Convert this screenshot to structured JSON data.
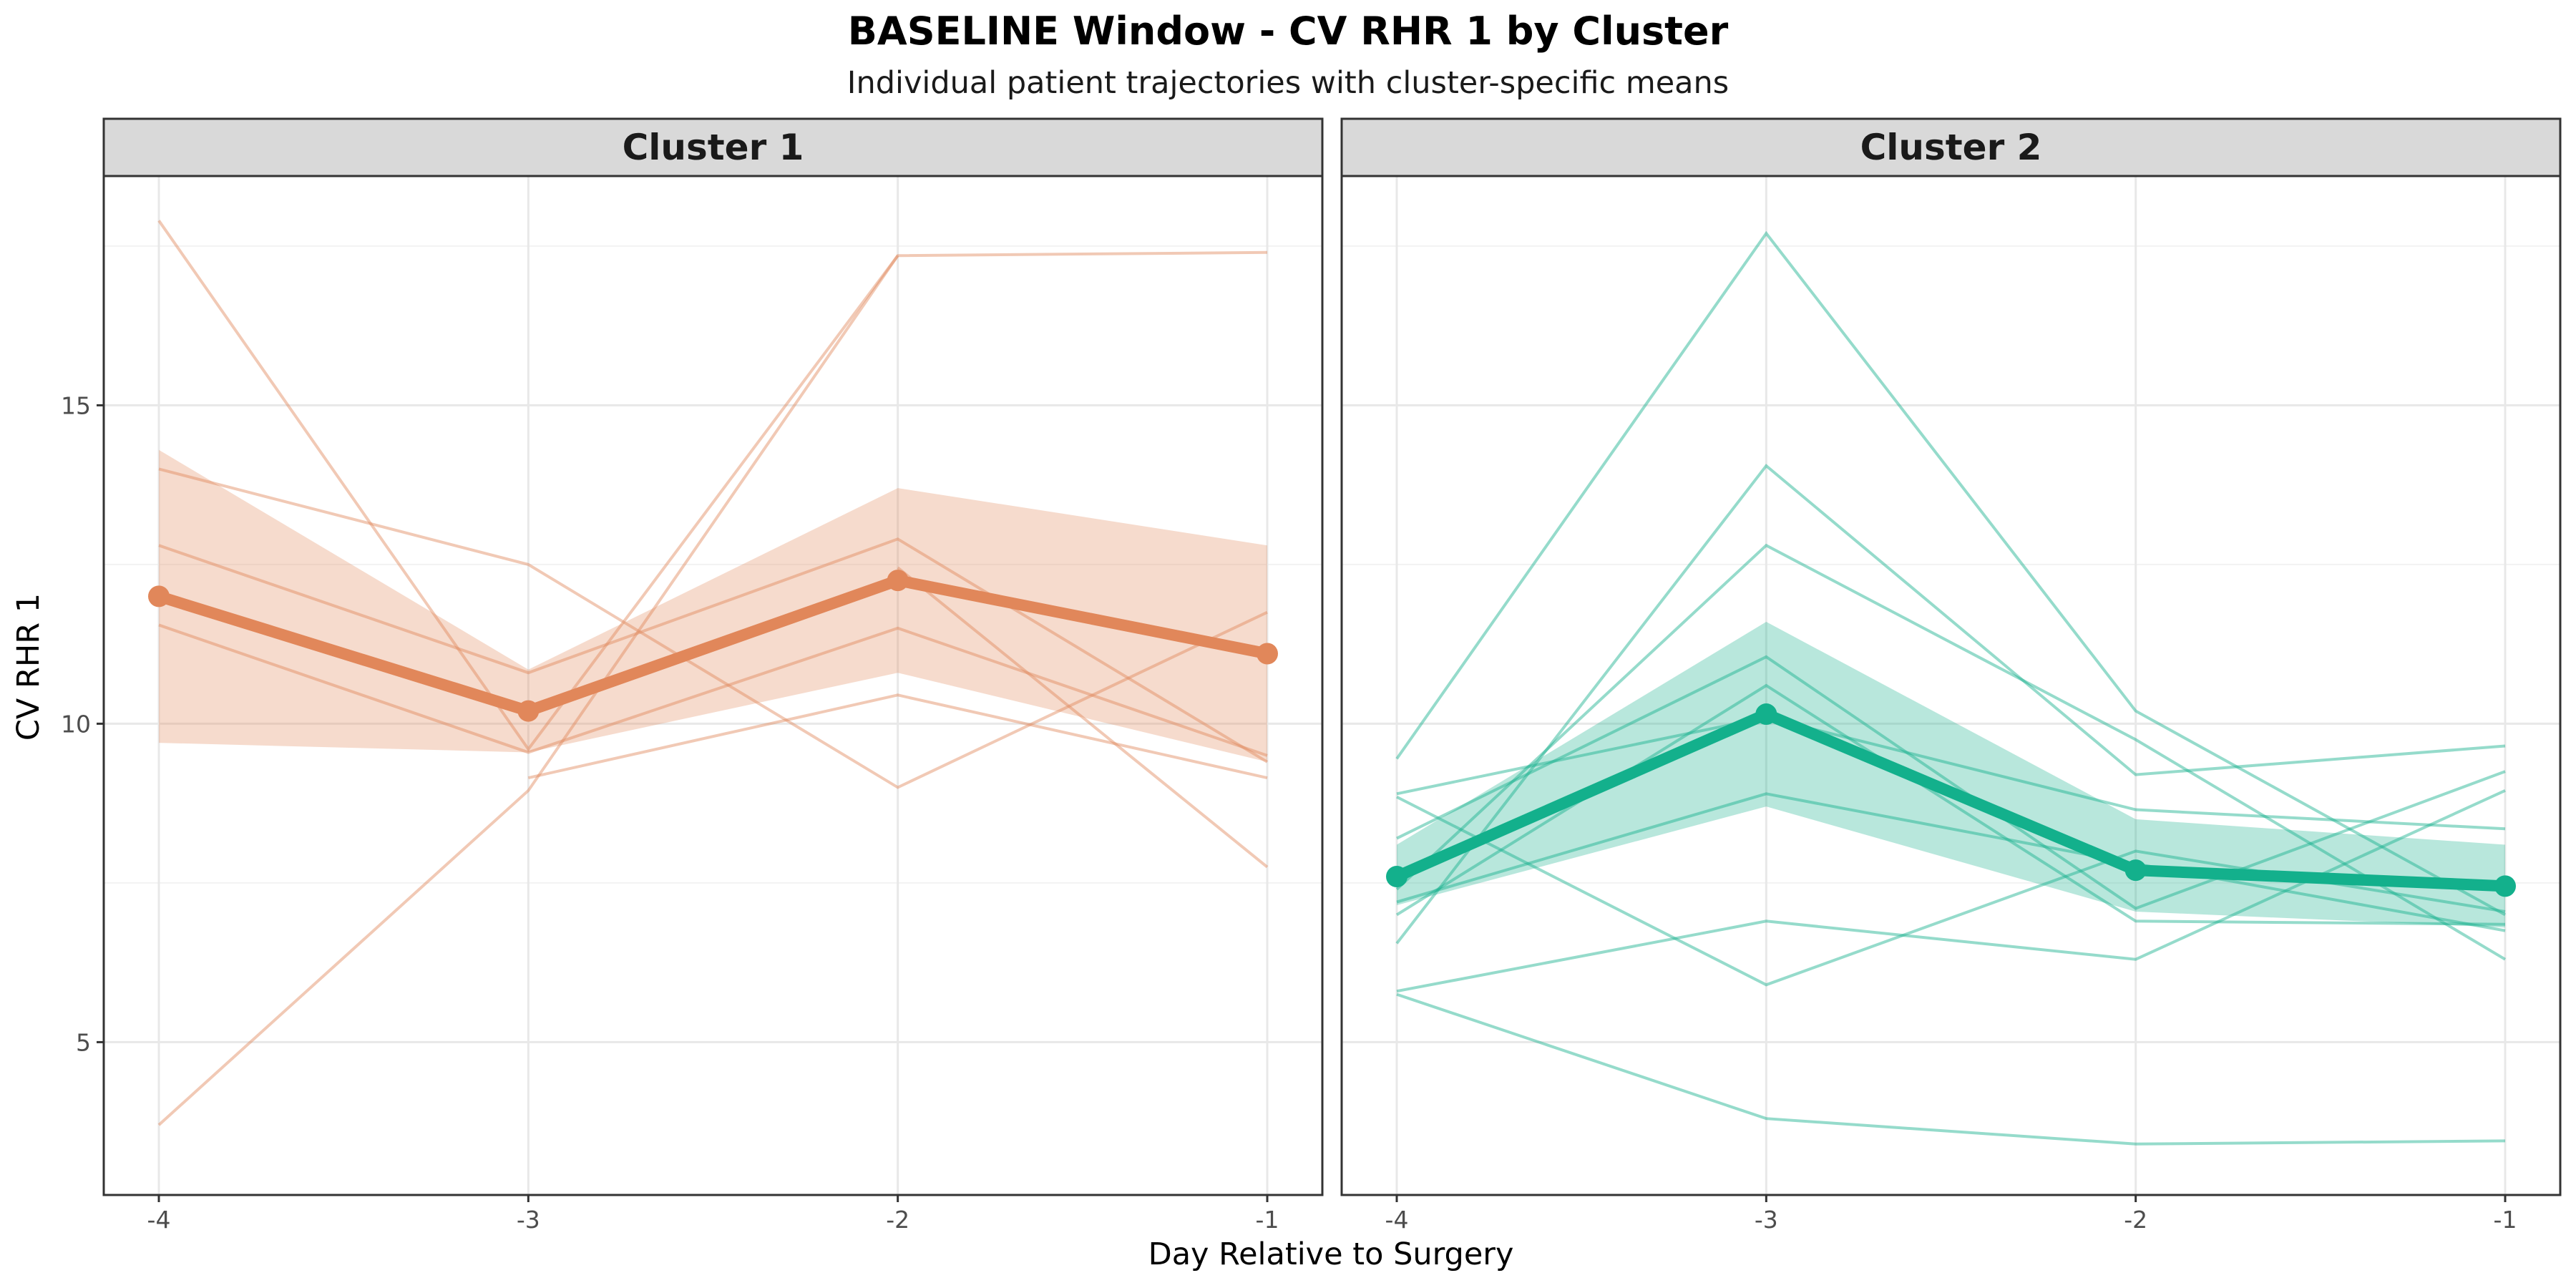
{
  "chart_data": {
    "type": "line",
    "title": "BASELINE Window - CV RHR 1 by Cluster",
    "subtitle": "Individual patient trajectories with cluster-specific means",
    "xlabel": "Day Relative to Surgery",
    "ylabel": "CV RHR 1",
    "x": [
      -4,
      -3,
      -2,
      -1
    ],
    "x_tick_labels": [
      "-4",
      "-3",
      "-2",
      "-1"
    ],
    "y_ticks": [
      5,
      10,
      15
    ],
    "y_tick_labels": [
      "5",
      "10",
      "15"
    ],
    "ylim": [
      2.6,
      18.6
    ],
    "grid": true,
    "panels": [
      {
        "label": "Cluster 1",
        "color": "#E1875A",
        "individuals": [
          [
            17.9,
            9.6,
            17.35,
            17.4
          ],
          [
            3.7,
            8.95,
            17.35,
            null
          ],
          [
            14.0,
            12.5,
            9.0,
            11.75
          ],
          [
            12.8,
            10.8,
            12.9,
            9.4
          ],
          [
            11.55,
            9.55,
            11.5,
            9.5
          ],
          [
            null,
            9.15,
            10.45,
            9.15
          ],
          [
            null,
            null,
            12.45,
            7.75
          ]
        ],
        "mean": [
          12.0,
          10.2,
          12.25,
          11.1
        ],
        "ribbon_lower": [
          9.7,
          9.55,
          10.8,
          9.4
        ],
        "ribbon_upper": [
          14.3,
          10.85,
          13.7,
          12.8
        ]
      },
      {
        "label": "Cluster 2",
        "color": "#13B08C",
        "individuals": [
          [
            9.45,
            17.7,
            10.2,
            7.0
          ],
          [
            6.55,
            14.05,
            9.2,
            9.65
          ],
          [
            7.4,
            12.8,
            9.75,
            6.3
          ],
          [
            8.2,
            11.05,
            7.1,
            9.25
          ],
          [
            8.9,
            10.1,
            8.65,
            8.35
          ],
          [
            7.2,
            8.9,
            7.8,
            6.75
          ],
          [
            8.85,
            5.9,
            8.0,
            7.05
          ],
          [
            5.8,
            6.9,
            6.3,
            8.95
          ],
          [
            5.75,
            3.8,
            3.4,
            3.45
          ],
          [
            7.0,
            10.6,
            6.9,
            6.85
          ]
        ],
        "mean": [
          7.6,
          10.15,
          7.7,
          7.45
        ],
        "ribbon_lower": [
          7.15,
          8.7,
          7.05,
          6.8
        ],
        "ribbon_upper": [
          8.1,
          11.6,
          8.5,
          8.1
        ]
      }
    ]
  }
}
